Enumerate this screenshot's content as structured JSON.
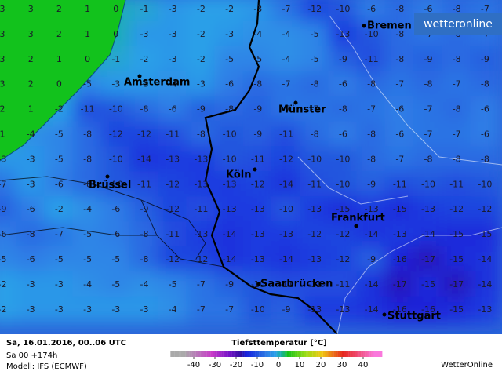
{
  "logo": "wetteronline",
  "map": {
    "grid": [
      [
        3,
        3,
        2,
        1,
        0,
        -1,
        -3,
        -2,
        -2,
        -3,
        -7,
        -12,
        -10,
        -6,
        -8,
        -6,
        -8,
        -7
      ],
      [
        3,
        3,
        2,
        1,
        0,
        -3,
        -3,
        -2,
        -3,
        -4,
        -4,
        -5,
        -13,
        -10,
        -8,
        -7,
        -8,
        -7
      ],
      [
        3,
        2,
        1,
        0,
        -1,
        -2,
        -3,
        -2,
        -5,
        -5,
        -4,
        -5,
        -9,
        -11,
        -8,
        -9,
        -8,
        -9
      ],
      [
        3,
        2,
        0,
        -5,
        -3,
        -3,
        -4,
        -3,
        -6,
        -8,
        -7,
        -8,
        -6,
        -8,
        -7,
        -8,
        -7,
        -8
      ],
      [
        2,
        1,
        -2,
        -11,
        -10,
        -8,
        -6,
        -9,
        -8,
        -9,
        -7,
        -7,
        -8,
        -7,
        -6,
        -7,
        -8,
        -6
      ],
      [
        1,
        -4,
        -5,
        -8,
        -12,
        -12,
        -11,
        -8,
        -10,
        -9,
        -11,
        -8,
        -6,
        -8,
        -6,
        -7,
        -7,
        -6
      ],
      [
        -3,
        -3,
        -5,
        -8,
        -10,
        -14,
        -13,
        -13,
        -10,
        -11,
        -12,
        -10,
        -10,
        -8,
        -7,
        -8,
        -8,
        -8
      ],
      [
        -7,
        -3,
        -6,
        -8,
        -10,
        -11,
        -12,
        -13,
        -13,
        -12,
        -14,
        -11,
        -10,
        -9,
        -11,
        -10,
        -11,
        -10
      ],
      [
        -9,
        -6,
        -2,
        -4,
        -6,
        -9,
        -12,
        -11,
        -13,
        -13,
        -10,
        -13,
        -15,
        -13,
        -15,
        -13,
        -12,
        -12
      ],
      [
        -6,
        -8,
        -7,
        -5,
        -6,
        -8,
        -11,
        -13,
        -14,
        -13,
        -13,
        -12,
        -12,
        -14,
        -13,
        -14,
        -15,
        -15
      ],
      [
        -5,
        -6,
        -5,
        -5,
        -5,
        -8,
        -12,
        -12,
        -14,
        -13,
        -14,
        -13,
        -12,
        -9,
        -16,
        -17,
        -15,
        -14
      ],
      [
        -2,
        -3,
        -3,
        -4,
        -5,
        -4,
        -5,
        -7,
        -9,
        -10,
        -11,
        -11,
        -11,
        -14,
        -17,
        -15,
        -17,
        -14
      ],
      [
        -2,
        -3,
        -3,
        -3,
        -3,
        -3,
        -4,
        -7,
        -7,
        -10,
        -9,
        -13,
        -13,
        -14,
        -16,
        -16,
        -15,
        -13
      ]
    ],
    "cities": [
      {
        "name": "Bremen"
      },
      {
        "name": "Amsterdam"
      },
      {
        "name": "Münster"
      },
      {
        "name": "Köln"
      },
      {
        "name": "Brüssel"
      },
      {
        "name": "Frankfurt"
      },
      {
        "name": "Saarbrücken"
      },
      {
        "name": "Stuttgart"
      }
    ]
  },
  "footer": {
    "date": "Sa, 16.01.2016, 00..06 UTC",
    "run": "Sa 00 +174h",
    "model": "Modell: IFS (ECMWF)",
    "legend_title": "Tiefsttemperatur [°C]",
    "legend_ticks": [
      -40,
      -30,
      -20,
      -10,
      0,
      10,
      20,
      30,
      40
    ],
    "brand": "WetterOnline"
  }
}
